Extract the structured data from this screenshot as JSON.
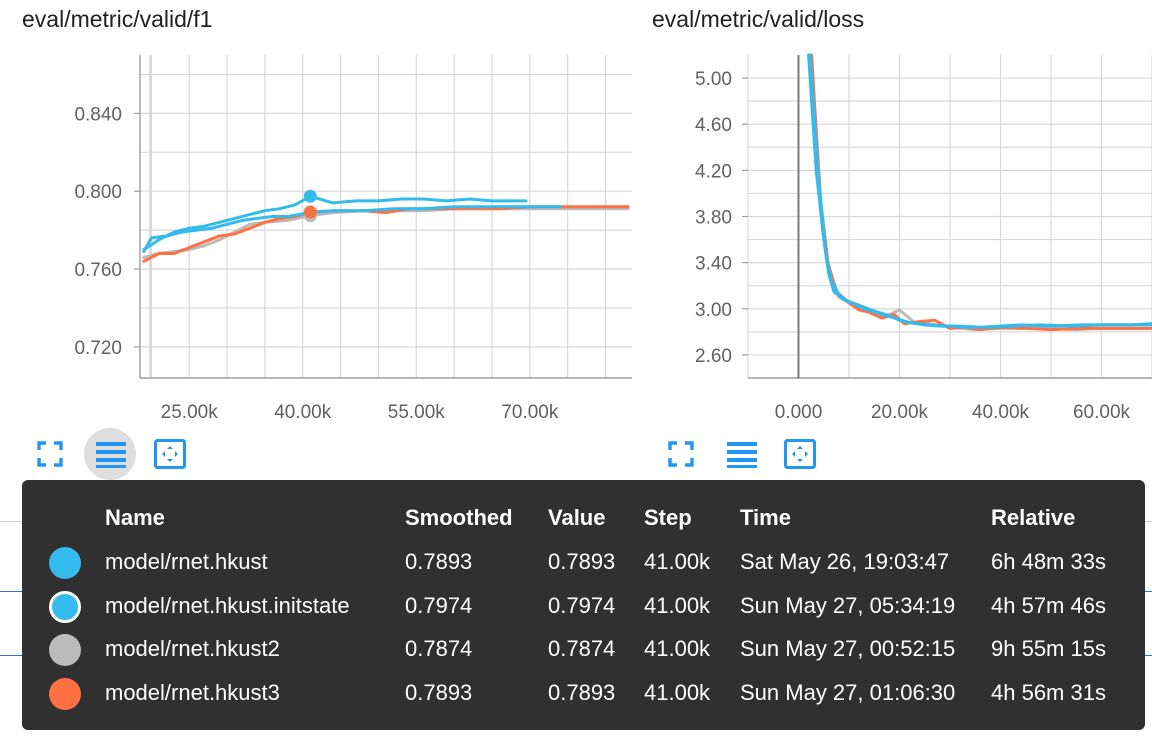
{
  "charts": [
    {
      "id": "f1",
      "title": "eval/metric/valid/f1",
      "ytick_labels": [
        "0.840",
        "0.800",
        "0.760",
        "0.720"
      ],
      "xtick_labels": [
        "25.00k",
        "40.00k",
        "55.00k",
        "70.00k"
      ],
      "buttons": {
        "fit": "expand-icon",
        "data": "list-icon",
        "zoom": "fit-domain-icon"
      }
    },
    {
      "id": "loss",
      "title": "eval/metric/valid/loss",
      "ytick_labels": [
        "5.00",
        "4.60",
        "4.20",
        "3.80",
        "3.40",
        "3.00",
        "2.60"
      ],
      "xtick_labels": [
        "0.000",
        "20.00k",
        "40.00k",
        "60.00k"
      ],
      "buttons": {
        "fit": "expand-icon",
        "data": "list-icon",
        "zoom": "fit-domain-icon"
      }
    }
  ],
  "chart_data": [
    {
      "type": "line",
      "title": "eval/metric/valid/f1",
      "xlabel": "",
      "ylabel": "",
      "xlim": [
        18500,
        83500
      ],
      "ylim": [
        0.704,
        0.87
      ],
      "x_ticks": [
        25000,
        40000,
        55000,
        70000
      ],
      "y_ticks": [
        0.72,
        0.76,
        0.8,
        0.84
      ],
      "grid": true,
      "hover_step": 41000,
      "series": [
        {
          "name": "model/rnet.hkust",
          "color": "#33bbee",
          "x": [
            19000,
            20000,
            22000,
            24000,
            26000,
            28000,
            30000,
            32000,
            34000,
            36000,
            38000,
            41000,
            44000,
            48000,
            52000,
            56000,
            60000,
            64000,
            68000,
            72000,
            74000
          ],
          "y": [
            0.769,
            0.776,
            0.777,
            0.779,
            0.78,
            0.781,
            0.783,
            0.785,
            0.786,
            0.787,
            0.787,
            0.789,
            0.79,
            0.79,
            0.791,
            0.791,
            0.792,
            0.792,
            0.792,
            0.792,
            0.792
          ]
        },
        {
          "name": "model/rnet.hkust.initstate",
          "color": "#33bbee",
          "x": [
            19000,
            21000,
            23000,
            25000,
            27000,
            29000,
            31000,
            33000,
            35000,
            37000,
            39000,
            41000,
            44000,
            47000,
            50000,
            53000,
            56000,
            59000,
            62000,
            65000,
            68000,
            69500
          ],
          "y": [
            0.77,
            0.775,
            0.779,
            0.781,
            0.782,
            0.784,
            0.786,
            0.788,
            0.79,
            0.791,
            0.793,
            0.7974,
            0.794,
            0.795,
            0.795,
            0.796,
            0.796,
            0.795,
            0.796,
            0.795,
            0.795,
            0.795
          ]
        },
        {
          "name": "model/rnet.hkust2",
          "color": "#bbbbbb",
          "x": [
            19000,
            21000,
            23000,
            25000,
            27000,
            29000,
            31000,
            33000,
            35000,
            38000,
            41000,
            44000,
            48000,
            52000,
            56000,
            60000,
            64000,
            68000,
            72000,
            76000,
            80000,
            83000
          ],
          "y": [
            0.766,
            0.768,
            0.769,
            0.77,
            0.772,
            0.775,
            0.779,
            0.783,
            0.784,
            0.785,
            0.7874,
            0.789,
            0.79,
            0.79,
            0.79,
            0.791,
            0.791,
            0.791,
            0.791,
            0.791,
            0.791,
            0.791
          ]
        },
        {
          "name": "model/rnet.hkust3",
          "color": "#ff7043",
          "x": [
            19000,
            21000,
            23000,
            25000,
            27000,
            29000,
            31000,
            33000,
            35000,
            37000,
            39000,
            41000,
            44000,
            48000,
            51000,
            54000,
            58000,
            62000,
            66000,
            70000,
            75000,
            80000,
            83000
          ],
          "y": [
            0.764,
            0.768,
            0.768,
            0.771,
            0.774,
            0.777,
            0.778,
            0.781,
            0.784,
            0.786,
            0.787,
            0.7893,
            0.79,
            0.79,
            0.789,
            0.791,
            0.791,
            0.791,
            0.791,
            0.792,
            0.792,
            0.792,
            0.792
          ]
        }
      ]
    },
    {
      "type": "line",
      "title": "eval/metric/valid/loss",
      "xlabel": "",
      "ylabel": "",
      "xlim": [
        -10000,
        70000
      ],
      "ylim": [
        2.4,
        5.2
      ],
      "x_ticks": [
        0,
        20000,
        40000,
        60000
      ],
      "y_ticks": [
        2.6,
        3.0,
        3.4,
        3.8,
        4.2,
        4.6,
        5.0
      ],
      "grid": true,
      "series": [
        {
          "name": "model/rnet.hkust",
          "color": "#33bbee",
          "x": [
            2000,
            3500,
            5000,
            6000,
            7000,
            9000,
            12000,
            15000,
            18000,
            20000,
            22000,
            25000,
            28000,
            32000,
            36000,
            40000,
            44000,
            50000,
            56000,
            62000,
            70000
          ],
          "y": [
            5.2,
            4.2,
            3.6,
            3.3,
            3.15,
            3.08,
            3.03,
            2.98,
            2.94,
            2.9,
            2.88,
            2.86,
            2.85,
            2.85,
            2.84,
            2.85,
            2.86,
            2.85,
            2.86,
            2.86,
            2.86
          ]
        },
        {
          "name": "model/rnet.hkust.initstate",
          "color": "#33bbee",
          "x": [
            2300,
            4000,
            5500,
            6500,
            8000,
            10000,
            13000,
            16000,
            19000,
            22000,
            26000,
            30000,
            34000,
            38000,
            42000,
            48000,
            54000,
            60000,
            66000,
            70000
          ],
          "y": [
            5.2,
            4.1,
            3.45,
            3.25,
            3.12,
            3.06,
            3.0,
            2.96,
            2.92,
            2.88,
            2.86,
            2.85,
            2.84,
            2.84,
            2.85,
            2.86,
            2.85,
            2.86,
            2.86,
            2.87
          ]
        },
        {
          "name": "model/rnet.hkust2",
          "color": "#bbbbbb",
          "x": [
            2500,
            4500,
            6000,
            8000,
            11000,
            14000,
            17000,
            20000,
            23000,
            26000,
            30000,
            35000,
            40000,
            45000,
            50000,
            55000,
            60000,
            65000,
            70000
          ],
          "y": [
            5.2,
            3.9,
            3.35,
            3.1,
            3.03,
            2.97,
            2.93,
            2.99,
            2.88,
            2.87,
            2.84,
            2.82,
            2.83,
            2.83,
            2.83,
            2.82,
            2.83,
            2.83,
            2.83
          ]
        },
        {
          "name": "model/rnet.hkust3",
          "color": "#ff7043",
          "x": [
            2600,
            4300,
            5800,
            7500,
            10000,
            12000,
            14000,
            16500,
            19000,
            21000,
            24000,
            27000,
            30000,
            33000,
            36000,
            40000,
            45000,
            50000,
            56000,
            62000,
            70000
          ],
          "y": [
            5.2,
            3.95,
            3.4,
            3.15,
            3.05,
            2.99,
            2.97,
            2.92,
            2.95,
            2.87,
            2.89,
            2.9,
            2.83,
            2.84,
            2.82,
            2.84,
            2.83,
            2.82,
            2.83,
            2.83,
            2.83
          ]
        }
      ]
    }
  ],
  "tooltip": {
    "headers": {
      "name": "Name",
      "smoothed": "Smoothed",
      "value": "Value",
      "step": "Step",
      "time": "Time",
      "relative": "Relative"
    },
    "rows": [
      {
        "name": "model/rnet.hkust",
        "smoothed": "0.7893",
        "value": "0.7893",
        "step": "41.00k",
        "time": "Sat May 26, 19:03:47",
        "relative": "6h 48m 33s",
        "color": "#33bbee",
        "highlighted": false
      },
      {
        "name": "model/rnet.hkust.initstate",
        "smoothed": "0.7974",
        "value": "0.7974",
        "step": "41.00k",
        "time": "Sun May 27, 05:34:19",
        "relative": "4h 57m 46s",
        "color": "#33bbee",
        "highlighted": true
      },
      {
        "name": "model/rnet.hkust2",
        "smoothed": "0.7874",
        "value": "0.7874",
        "step": "41.00k",
        "time": "Sun May 27, 00:52:15",
        "relative": "9h 55m 15s",
        "color": "#bbbbbb",
        "highlighted": false
      },
      {
        "name": "model/rnet.hkust3",
        "smoothed": "0.7893",
        "value": "0.7893",
        "step": "41.00k",
        "time": "Sun May 27, 01:06:30",
        "relative": "4h 56m 31s",
        "color": "#ff7043",
        "highlighted": false
      }
    ]
  }
}
